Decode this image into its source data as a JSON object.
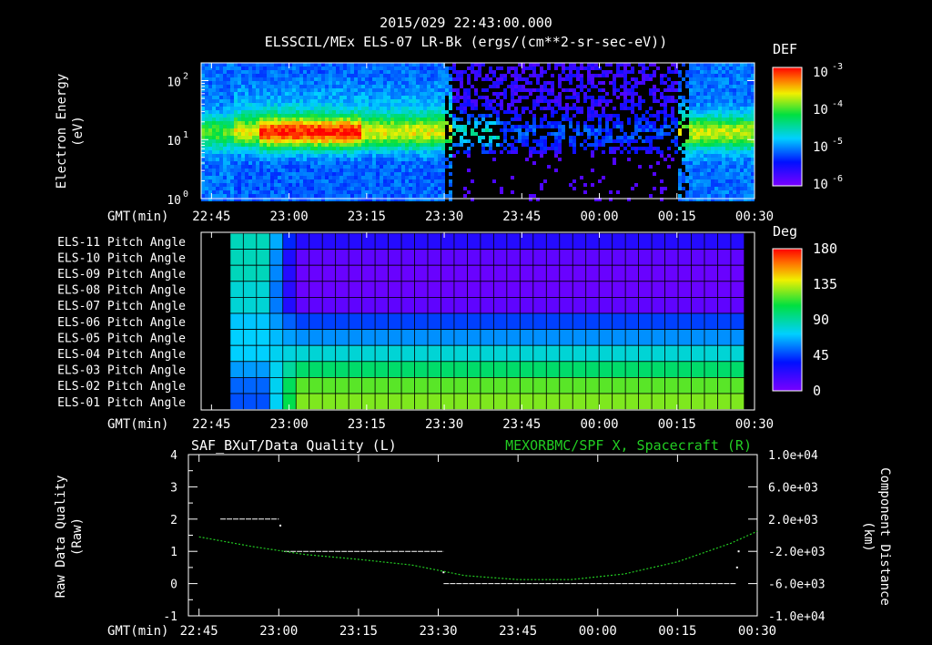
{
  "header": {
    "timestamp": "2015/029 22:43:00.000",
    "title": "ELSSCIL/MEx ELS-07 LR-Bk  (ergs/(cm**2-sr-sec-eV))"
  },
  "time_axis": {
    "label": "GMT(min)",
    "ticks": [
      "22:45",
      "23:00",
      "23:15",
      "23:30",
      "23:45",
      "00:00",
      "00:15",
      "00:30"
    ]
  },
  "colors": {
    "background": "#000000",
    "foreground": "#ffffff",
    "spacecraft_x": "#22cc22",
    "data_quality": "#ffffff"
  },
  "chart_data": [
    {
      "type": "heatmap",
      "name": "energy-spectrogram",
      "ylabel": "Electron Energy (eV)",
      "ylabel_lines": [
        "Electron Energy",
        "(eV)"
      ],
      "yscale": "log",
      "ylim": [
        1,
        200
      ],
      "yticks": [
        {
          "value": 1,
          "label": "10",
          "exp": "0"
        },
        {
          "value": 10,
          "label": "10",
          "exp": "1"
        },
        {
          "value": 100,
          "label": "10",
          "exp": "2"
        }
      ],
      "x_minutes": [
        0,
        105
      ],
      "colorbar": {
        "label": "DEF",
        "scale": "log",
        "range": [
          1e-06,
          0.001
        ],
        "ticks": [
          {
            "label": "10",
            "exp": "-3"
          },
          {
            "label": "10",
            "exp": "-4"
          },
          {
            "label": "10",
            "exp": "-5"
          },
          {
            "label": "10",
            "exp": "-6"
          }
        ]
      }
    },
    {
      "type": "heatmap",
      "name": "pitch-angle-grid",
      "rows": [
        "ELS-11 Pitch Angle",
        "ELS-10 Pitch Angle",
        "ELS-09 Pitch Angle",
        "ELS-08 Pitch Angle",
        "ELS-07 Pitch Angle",
        "ELS-06 Pitch Angle",
        "ELS-05 Pitch Angle",
        "ELS-04 Pitch Angle",
        "ELS-03 Pitch Angle",
        "ELS-02 Pitch Angle",
        "ELS-01 Pitch Angle"
      ],
      "x_minutes": [
        0,
        105
      ],
      "data_start_minute": 5.5,
      "data_end_minute": 101,
      "column_step_minutes": 2.5,
      "late_pitch_deg": [
        25,
        8,
        5,
        5,
        8,
        45,
        60,
        80,
        100,
        120,
        125
      ],
      "early_pitch_deg": [
        85,
        85,
        85,
        80,
        80,
        70,
        72,
        72,
        62,
        52,
        48
      ],
      "colorbar": {
        "label": "Deg",
        "range": [
          0,
          180
        ],
        "ticks": [
          "180",
          "135",
          "90",
          "45",
          "0"
        ]
      }
    },
    {
      "type": "line",
      "name": "data-quality-and-position",
      "title_left": "SAF_BXuT/Data Quality (L)",
      "title_right": "MEXORBMC/SPF X, Spacecraft (R)",
      "ylabel_left": [
        "Raw Data Quality",
        "(Raw)"
      ],
      "ylabel_right": [
        "Component Distance",
        "(km)"
      ],
      "ylim_left": [
        -1,
        4
      ],
      "yticks_left": [
        "4",
        "3",
        "2",
        "1",
        "0",
        "-1"
      ],
      "ylim_right": [
        -10000,
        10000
      ],
      "yticks_right": [
        "1.0e+04",
        "6.0e+03",
        "2.0e+03",
        "-2.0e+03",
        "-6.0e+03",
        "-1.0e+04"
      ],
      "series": [
        {
          "name": "Data Quality",
          "segments": [
            {
              "x": [
                4,
                15
              ],
              "y": 2
            },
            {
              "x": [
                16,
                46
              ],
              "y": 1
            },
            {
              "x": [
                46,
                101
              ],
              "y": 0
            }
          ],
          "points": [
            {
              "x": 15.3,
              "y": 1.8
            },
            {
              "x": 46,
              "y": 0.35
            },
            {
              "x": 101.5,
              "y": 1.0
            },
            {
              "x": 101.2,
              "y": 0.5
            }
          ]
        },
        {
          "name": "Spacecraft X",
          "x": [
            0,
            10,
            20,
            30,
            40,
            50,
            60,
            70,
            80,
            90,
            100,
            105
          ],
          "y": [
            -200,
            -1400,
            -2400,
            -3000,
            -3700,
            -5000,
            -5500,
            -5500,
            -4800,
            -3300,
            -1000,
            500
          ]
        }
      ]
    }
  ]
}
